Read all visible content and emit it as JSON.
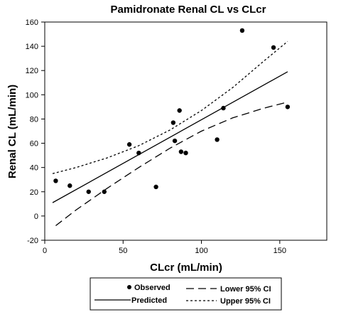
{
  "chart_data": {
    "type": "scatter",
    "title": "Pamidronate Renal CL vs CLcr",
    "xlabel": "CLcr (mL/min)",
    "ylabel": "Renal CL (mL/min)",
    "xlim": [
      0,
      180
    ],
    "ylim": [
      -20,
      160
    ],
    "x_ticks": [
      0,
      50,
      100,
      150
    ],
    "y_ticks": [
      -20,
      0,
      20,
      40,
      60,
      80,
      100,
      120,
      140,
      160
    ],
    "grid": false,
    "legend_position": "bottom",
    "series": [
      {
        "name": "Observed",
        "kind": "points",
        "points": [
          {
            "x": 7,
            "y": 29
          },
          {
            "x": 16,
            "y": 25
          },
          {
            "x": 28,
            "y": 20
          },
          {
            "x": 38,
            "y": 20
          },
          {
            "x": 54,
            "y": 59
          },
          {
            "x": 60,
            "y": 52
          },
          {
            "x": 71,
            "y": 24
          },
          {
            "x": 82,
            "y": 77
          },
          {
            "x": 83,
            "y": 62
          },
          {
            "x": 86,
            "y": 87
          },
          {
            "x": 87,
            "y": 53
          },
          {
            "x": 90,
            "y": 52
          },
          {
            "x": 110,
            "y": 63
          },
          {
            "x": 114,
            "y": 89
          },
          {
            "x": 126,
            "y": 153
          },
          {
            "x": 146,
            "y": 139
          },
          {
            "x": 155,
            "y": 90
          }
        ]
      },
      {
        "name": "Predicted",
        "kind": "line",
        "style": "solid",
        "points": [
          {
            "x": 5,
            "y": 11
          },
          {
            "x": 155,
            "y": 119
          }
        ]
      },
      {
        "name": "Lower 95% CI",
        "kind": "line",
        "style": "long-dash",
        "points": [
          {
            "x": 7,
            "y": -8
          },
          {
            "x": 20,
            "y": 5
          },
          {
            "x": 40,
            "y": 23
          },
          {
            "x": 60,
            "y": 40
          },
          {
            "x": 80,
            "y": 56
          },
          {
            "x": 100,
            "y": 70
          },
          {
            "x": 120,
            "y": 81
          },
          {
            "x": 140,
            "y": 89
          },
          {
            "x": 155,
            "y": 94
          }
        ]
      },
      {
        "name": "Upper 95% CI",
        "kind": "line",
        "style": "short-dash",
        "points": [
          {
            "x": 5,
            "y": 35
          },
          {
            "x": 20,
            "y": 40
          },
          {
            "x": 40,
            "y": 48
          },
          {
            "x": 60,
            "y": 58
          },
          {
            "x": 80,
            "y": 71
          },
          {
            "x": 100,
            "y": 87
          },
          {
            "x": 120,
            "y": 106
          },
          {
            "x": 140,
            "y": 128
          },
          {
            "x": 155,
            "y": 144
          }
        ]
      }
    ],
    "legend": {
      "observed": "Observed",
      "predicted": "Predicted",
      "lower": "Lower 95% CI",
      "upper": "Upper 95% CI"
    }
  }
}
